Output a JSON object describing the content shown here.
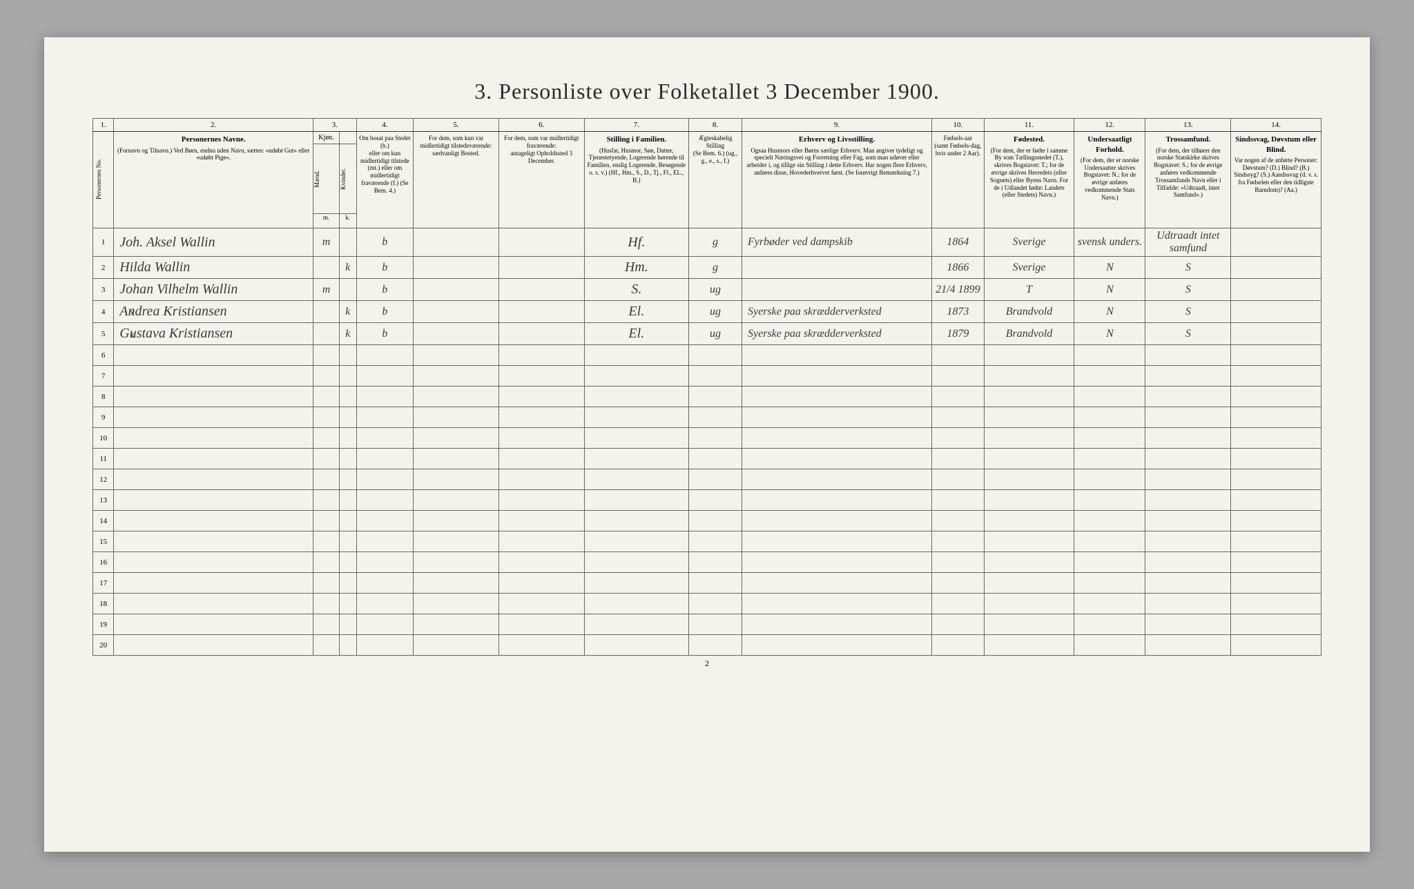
{
  "title": "3. Personliste over Folketallet 3 December 1900.",
  "page_number": "2",
  "header_nums": [
    "1.",
    "2.",
    "3.",
    "4.",
    "5.",
    "6.",
    "7.",
    "8.",
    "9.",
    "10.",
    "11.",
    "12.",
    "13.",
    "14."
  ],
  "headers": {
    "c1": "Personernes No.",
    "c2_title": "Personernes Navne.",
    "c2_sub": "(Fornavn og Tilnavn.)\nVed Børn, endnu uden Navn, sættes: «udøbt Gut» eller «udøbt Pige».",
    "c3_title": "Kjøn.",
    "c3a": "Mænd.",
    "c3b": "Kvinder.",
    "c3_sub": "m. k.",
    "c4_title": "Om bosat paa Stedet (b.)",
    "c4_sub": "eller om kun midlertidigt tilstede (mt.) eller om midlertidigt fraværende (f.)\n(Se Bem. 4.)",
    "c5_title": "For dem, som kun var midlertidigt tilstedeværende:",
    "c5_sub": "sædvanligt Bosted.",
    "c6_title": "For dem, som var midlertidigt fraværende:",
    "c6_sub": "antageligt Opholdssted 3 December.",
    "c7_title": "Stilling i Familien.",
    "c7_sub": "(Husfar, Husmor, Søn, Datter, Tjenestetyende, Logerende hørende til Familien, enslig Logerende, Besøgende o. s. v.)\n(Hf., Hm., S., D., Tj., Fl., EL., B.)",
    "c8_title": "Ægteskabelig Stilling",
    "c8_sub": "(Se Bem. 6.)\n(ug., g., e., s., f.)",
    "c9_title": "Erhverv og Livsstilling.",
    "c9_sub": "Ogsaa Husmors eller Børns særlige Erhverv. Man angiver tydeligt og specielt Næringsvei og Forretning eller Fag, som man udøver eller arbeider i, og tillige sin Stilling i dette Erhverv. Har nogen flere Erhverv, anføres disse, Hovederhvervet først.\n(Se forøvrigt Bemærkning 7.)",
    "c10_title": "Fødsels-aar",
    "c10_sub": "(samt Fødsels-dag, hvis under 2 Aar).",
    "c11_title": "Fødested.",
    "c11_sub": "(For dem, der er fødte i samme By som Tællingsstedet (T.), skrives Bogstavet: T.; for de øvrige skrives Herredets (eller Sognets) eller Byens Navn. For de i Udlandet fødte: Landets (eller Stedets) Navn.)",
    "c12_title": "Undersaatligt Forhold.",
    "c12_sub": "(For dem, der er norske Undersaatter skrives Bogstavet: N.; for de øvrige anføres vedkommende Stats Navn.)",
    "c13_title": "Trossamfund.",
    "c13_sub": "(For dem, der tilhører den norske Statskirke skrives Bogstavet: S.; for de øvrige anføres vedkommende Trossamfunds Navn eller i Tilfælde: «Udtraadt, intet Samfund».)",
    "c14_title": "Sindssvag, Døvstum eller Blind.",
    "c14_sub": "Var nogen af de anførte Personer:\nDøvstum? (D.)\nBlind? (B.)\nSindssyg? (S.)\nAandssvag (d. v. s. fra Fødselen eller den tidligste Barndom)? (Aa.)"
  },
  "rows": [
    {
      "marker": "",
      "num": "1",
      "name": "Joh. Aksel Wallin",
      "sex_m": "m",
      "sex_k": "",
      "residence": "b",
      "c5": "",
      "c6": "",
      "family": "Hf.",
      "marital": "g",
      "occupation": "Fyrbøder ved dampskib",
      "birth": "1864",
      "birthplace": "Sverige",
      "subject": "svensk unders.",
      "faith": "Udtraadt intet samfund",
      "c14": ""
    },
    {
      "marker": "",
      "num": "2",
      "name": "Hilda Wallin",
      "sex_m": "",
      "sex_k": "k",
      "residence": "b",
      "c5": "",
      "c6": "",
      "family": "Hm.",
      "marital": "g",
      "occupation": "",
      "birth": "1866",
      "birthplace": "Sverige",
      "subject": "N",
      "faith": "S",
      "c14": ""
    },
    {
      "marker": "",
      "num": "3",
      "name": "Johan Vilhelm Wallin",
      "sex_m": "m",
      "sex_k": "",
      "residence": "b",
      "c5": "",
      "c6": "",
      "family": "S.",
      "marital": "ug",
      "occupation": "",
      "birth": "21/4 1899",
      "birthplace": "T",
      "subject": "N",
      "faith": "S",
      "c14": ""
    },
    {
      "marker": "x",
      "num": "4",
      "name": "Andrea Kristiansen",
      "sex_m": "",
      "sex_k": "k",
      "residence": "b",
      "c5": "",
      "c6": "",
      "family": "El.",
      "marital": "ug",
      "occupation": "Syerske paa skrædderverksted",
      "birth": "1873",
      "birthplace": "Brandvold",
      "subject": "N",
      "faith": "S",
      "c14": ""
    },
    {
      "marker": "x",
      "num": "5",
      "name": "Gustava Kristiansen",
      "sex_m": "",
      "sex_k": "k",
      "residence": "b",
      "c5": "",
      "c6": "",
      "family": "El.",
      "marital": "ug",
      "occupation": "Syerske paa skrædderverksted",
      "birth": "1879",
      "birthplace": "Brandvold",
      "subject": "N",
      "faith": "S",
      "c14": ""
    }
  ],
  "empty_rows": [
    "6",
    "7",
    "8",
    "9",
    "10",
    "11",
    "12",
    "13",
    "14",
    "15",
    "16",
    "17",
    "18",
    "19",
    "20"
  ],
  "colors": {
    "page_bg": "#f5f2eb",
    "border": "#666666",
    "text": "#2a2a2a",
    "handwriting": "#3a3a3a",
    "outer_bg": "#a8a8a8"
  }
}
